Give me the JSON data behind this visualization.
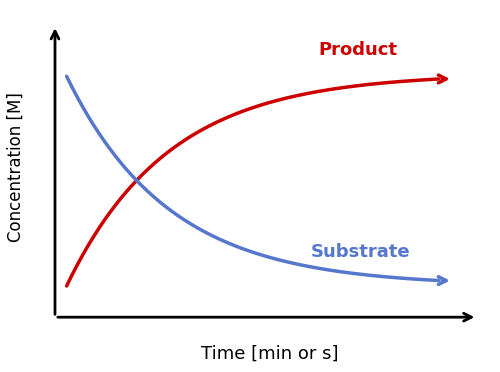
{
  "title": "",
  "xlabel": "Time [min or s]",
  "ylabel": "Concentration [M]",
  "background_color": "#ffffff",
  "product_color": "#cc0000",
  "substrate_color": "#5577cc",
  "product_label": "Product",
  "substrate_label": "Substrate",
  "linewidth": 2.5,
  "xlabel_fontsize": 13,
  "ylabel_fontsize": 12,
  "label_fontsize": 13
}
